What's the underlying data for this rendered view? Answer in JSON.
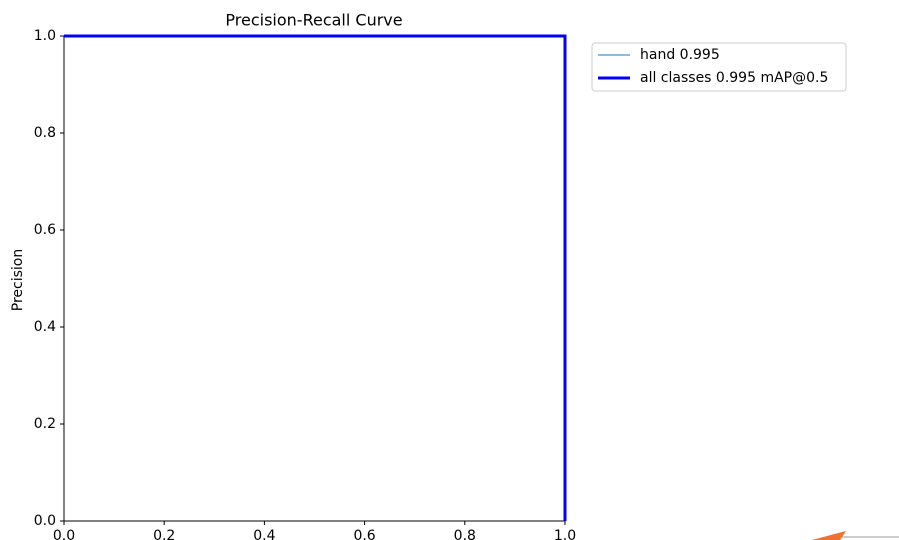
{
  "chart_data": {
    "type": "line",
    "title": "Precision-Recall Curve",
    "y_label": "Precision",
    "x": [
      0,
      1,
      1
    ],
    "series": [
      {
        "name": "hand 0.995",
        "color": "#1f77b4",
        "values": [
          1,
          1,
          0
        ]
      },
      {
        "name": "all classes 0.995 mAP@0.5",
        "color": "#0000ff",
        "values": [
          1,
          1,
          0
        ]
      }
    ],
    "xlim": [
      0,
      1
    ],
    "ylim": [
      0,
      1
    ],
    "xticks": [
      {
        "value": 0,
        "label": "0.0"
      },
      0.2,
      0.4,
      0.6,
      0.8,
      {
        "value": 1,
        "label": "1.0"
      }
    ],
    "yticks": [
      {
        "value": 0,
        "label": "0.0"
      },
      0.2,
      0.4,
      0.6,
      0.8,
      {
        "value": 1,
        "label": "1.0"
      }
    ]
  }
}
